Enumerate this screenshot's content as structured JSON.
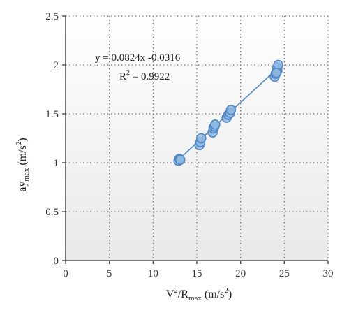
{
  "chart_data": {
    "type": "scatter",
    "xlabel": {
      "main": "V",
      "sup": "2",
      "mid": "/R",
      "sub": "max",
      "tail": " (m/s",
      "tail_sup": "2",
      "end": ")"
    },
    "ylabel": {
      "main": "ay",
      "sub": "max",
      "tail": " (m/s",
      "tail_sup": "2",
      "end": ")"
    },
    "xlim": [
      0,
      30
    ],
    "ylim": [
      0,
      2.5
    ],
    "xticks": [
      0,
      5,
      10,
      15,
      20,
      25,
      30
    ],
    "yticks": [
      0,
      0.5,
      1,
      1.5,
      2,
      2.5
    ],
    "xtick_labels": [
      "0",
      "5",
      "10",
      "15",
      "20",
      "25",
      "30"
    ],
    "ytick_labels": [
      "0",
      "0.5",
      "1",
      "1.5",
      "2",
      "2.5"
    ],
    "grid": true,
    "grid_style": "dotted",
    "trendline": {
      "slope": 0.0824,
      "intercept": -0.0316,
      "x_range": [
        12.8,
        24.4
      ],
      "equation_text": "y = 0.0824x -0.0316",
      "r2_prefix": "R",
      "r2_sup": "2",
      "r2_value": " = 0.9922"
    },
    "points": [
      {
        "x": 12.9,
        "y": 1.02
      },
      {
        "x": 13.0,
        "y": 1.04
      },
      {
        "x": 13.1,
        "y": 1.03
      },
      {
        "x": 15.3,
        "y": 1.18
      },
      {
        "x": 15.4,
        "y": 1.21
      },
      {
        "x": 15.5,
        "y": 1.25
      },
      {
        "x": 16.8,
        "y": 1.31
      },
      {
        "x": 16.9,
        "y": 1.35
      },
      {
        "x": 17.0,
        "y": 1.37
      },
      {
        "x": 17.1,
        "y": 1.39
      },
      {
        "x": 18.4,
        "y": 1.46
      },
      {
        "x": 18.6,
        "y": 1.49
      },
      {
        "x": 18.8,
        "y": 1.51
      },
      {
        "x": 18.9,
        "y": 1.54
      },
      {
        "x": 23.9,
        "y": 1.88
      },
      {
        "x": 24.0,
        "y": 1.91
      },
      {
        "x": 24.2,
        "y": 1.94
      },
      {
        "x": 24.2,
        "y": 1.97
      },
      {
        "x": 24.3,
        "y": 2.0
      },
      {
        "x": 24.1,
        "y": 1.92
      }
    ],
    "colors": {
      "point_fill": "#8db8e0",
      "point_edge": "#4f86c6",
      "line": "#4f86c6",
      "grid": "#777777",
      "axis": "#333333"
    }
  }
}
